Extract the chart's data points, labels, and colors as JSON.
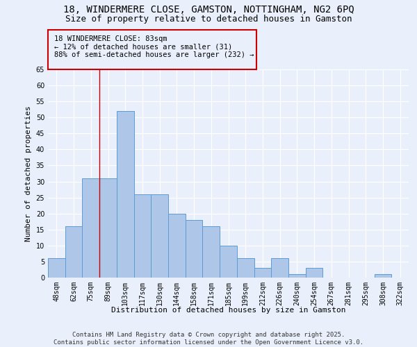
{
  "title": "18, WINDERMERE CLOSE, GAMSTON, NOTTINGHAM, NG2 6PQ",
  "subtitle": "Size of property relative to detached houses in Gamston",
  "xlabel": "Distribution of detached houses by size in Gamston",
  "ylabel": "Number of detached properties",
  "categories": [
    "48sqm",
    "62sqm",
    "75sqm",
    "89sqm",
    "103sqm",
    "117sqm",
    "130sqm",
    "144sqm",
    "158sqm",
    "171sqm",
    "185sqm",
    "199sqm",
    "212sqm",
    "226sqm",
    "240sqm",
    "254sqm",
    "267sqm",
    "281sqm",
    "295sqm",
    "308sqm",
    "322sqm"
  ],
  "values": [
    6,
    16,
    31,
    31,
    52,
    26,
    26,
    20,
    18,
    16,
    10,
    6,
    3,
    6,
    1,
    3,
    0,
    0,
    0,
    1,
    0
  ],
  "bar_color": "#aec6e8",
  "bar_edge_color": "#5b9bd5",
  "bg_color": "#eaf0fb",
  "grid_color": "#ffffff",
  "vline_x": 2.5,
  "vline_color": "#cc0000",
  "annotation_text": "18 WINDERMERE CLOSE: 83sqm\n← 12% of detached houses are smaller (31)\n88% of semi-detached houses are larger (232) →",
  "annotation_box_color": "#cc0000",
  "ylim": [
    0,
    65
  ],
  "yticks": [
    0,
    5,
    10,
    15,
    20,
    25,
    30,
    35,
    40,
    45,
    50,
    55,
    60,
    65
  ],
  "footer": "Contains HM Land Registry data © Crown copyright and database right 2025.\nContains public sector information licensed under the Open Government Licence v3.0.",
  "title_fontsize": 10,
  "subtitle_fontsize": 9,
  "xlabel_fontsize": 8,
  "ylabel_fontsize": 8,
  "tick_fontsize": 7,
  "annotation_fontsize": 7.5,
  "footer_fontsize": 6.5
}
